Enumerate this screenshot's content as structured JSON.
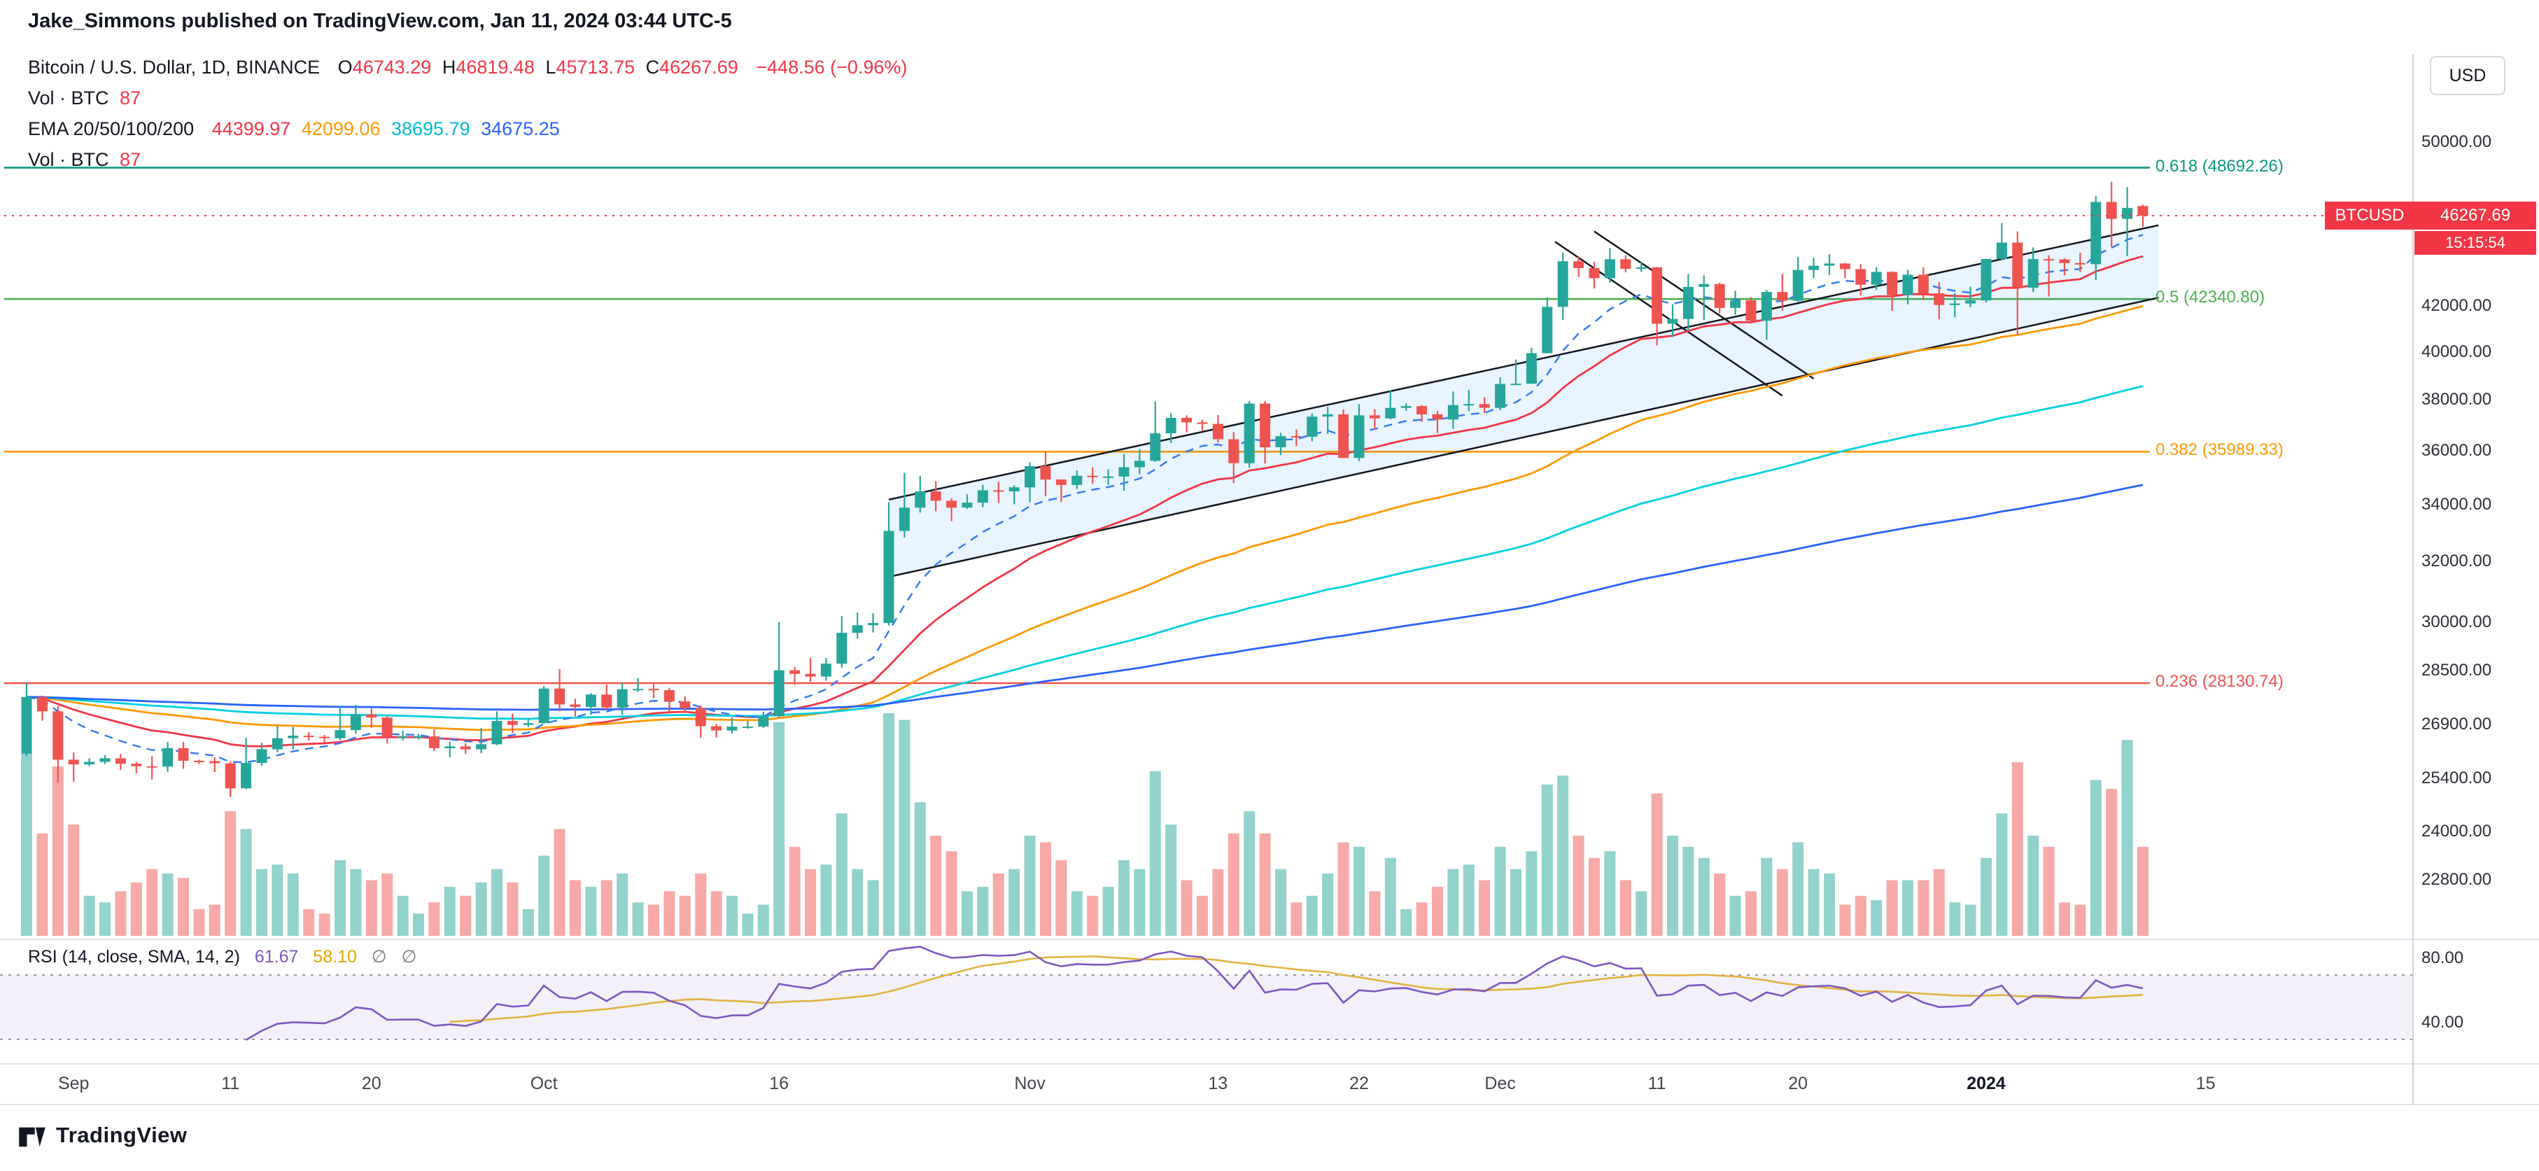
{
  "header": {
    "published_line": "Jake_Simmons published on TradingView.com, Jan 11, 2024 03:44 UTC-5"
  },
  "toolbar": {
    "currency_button": "USD"
  },
  "legend": {
    "symbol_title": "Bitcoin / U.S. Dollar, 1D, BINANCE",
    "ohlc": {
      "o_label": "O",
      "o_value": "46743.29",
      "h_label": "H",
      "h_value": "46819.48",
      "l_label": "L",
      "l_value": "45713.75",
      "c_label": "C",
      "c_value": "46267.69",
      "change": "−448.56 (−0.96%)"
    },
    "vol_row_1": {
      "label": "Vol · BTC",
      "value": "87"
    },
    "ema_row": {
      "label": "EMA 20/50/100/200",
      "value_20": "44399.97",
      "value_50": "42099.06",
      "value_100": "38695.79",
      "value_200": "34675.25"
    },
    "vol_row_2": {
      "label": "Vol · BTC",
      "value": "87"
    }
  },
  "price_scale": {
    "labels": [
      "50000.00",
      "42000.00",
      "40000.00",
      "38000.00",
      "36000.00",
      "34000.00",
      "32000.00",
      "30000.00",
      "28500.00",
      "26900.00",
      "25400.00",
      "24000.00",
      "22800.00"
    ],
    "price_badge": {
      "symbol": "BTCUSD",
      "price": "46267.69",
      "countdown": "15:15:54"
    }
  },
  "rsi_pane": {
    "legend_title": "RSI (14, close, SMA, 14, 2)",
    "rsi_value": "61.67",
    "sma_value": "58.10",
    "empty_1": "∅",
    "empty_2": "∅",
    "axis_labels": [
      "80.00",
      "40.00"
    ]
  },
  "time_axis": {
    "labels": [
      {
        "text": "Sep",
        "day_index": 3
      },
      {
        "text": "11",
        "day_index": 13
      },
      {
        "text": "20",
        "day_index": 22
      },
      {
        "text": "Oct",
        "day_index": 33
      },
      {
        "text": "16",
        "day_index": 48
      },
      {
        "text": "Nov",
        "day_index": 64
      },
      {
        "text": "13",
        "day_index": 76
      },
      {
        "text": "22",
        "day_index": 85
      },
      {
        "text": "Dec",
        "day_index": 94
      },
      {
        "text": "11",
        "day_index": 104
      },
      {
        "text": "20",
        "day_index": 113
      },
      {
        "text": "2024",
        "day_index": 125,
        "emphasis": true
      },
      {
        "text": "15",
        "day_index": 139
      }
    ]
  },
  "footer": {
    "brand": "TradingView"
  },
  "chart_data": {
    "type": "candlestick",
    "title": "Bitcoin / U.S. Dollar, 1D, BINANCE",
    "symbol": "BTCUSD",
    "exchange": "BINANCE",
    "interval": "1D",
    "price_scale_type": "log",
    "date_range": {
      "start": "2023-08-29",
      "end": "2024-01-11"
    },
    "last": {
      "open": 46743.29,
      "high": 46819.48,
      "low": 45713.75,
      "close": 46267.69,
      "change": -448.56,
      "change_pct": -0.96
    },
    "volume_scale": "relative-0-100",
    "colors": {
      "up": "#26a69a",
      "down": "#ef5350",
      "vol_up": "rgba(38,166,154,0.5)",
      "vol_down": "rgba(239,83,80,0.5)",
      "price_line": "#f23645",
      "dashed_ma": "#3179f5",
      "rsi": "#7e57c2",
      "rsi_sma": "#e3b341",
      "channel": "#14161f",
      "channel_fill": "rgba(33,150,243,0.10)",
      "band_fill": "rgba(126,87,194,0.09)",
      "band_line": "#9598a1"
    },
    "candles": [
      [
        26100,
        28140,
        26030,
        27720,
        82
      ],
      [
        27720,
        27760,
        27030,
        27300,
        46
      ],
      [
        27300,
        27460,
        25300,
        25930,
        76
      ],
      [
        25930,
        26130,
        25330,
        25800,
        50
      ],
      [
        25800,
        25970,
        25750,
        25870,
        18
      ],
      [
        25870,
        26060,
        25810,
        25970,
        15
      ],
      [
        25970,
        26090,
        25650,
        25820,
        20
      ],
      [
        25820,
        25870,
        25560,
        25750,
        24
      ],
      [
        25750,
        26030,
        25390,
        25740,
        30
      ],
      [
        25740,
        26420,
        25600,
        26250,
        28
      ],
      [
        26250,
        26420,
        25680,
        25900,
        26
      ],
      [
        25900,
        25930,
        25810,
        25890,
        12
      ],
      [
        25890,
        26000,
        25590,
        25830,
        14
      ],
      [
        25830,
        25880,
        24920,
        25150,
        56
      ],
      [
        25150,
        26550,
        25130,
        25840,
        48
      ],
      [
        25840,
        26400,
        25760,
        26220,
        30
      ],
      [
        26220,
        26880,
        26140,
        26530,
        32
      ],
      [
        26530,
        26850,
        26220,
        26600,
        28
      ],
      [
        26600,
        26700,
        26470,
        26570,
        12
      ],
      [
        26570,
        26620,
        26400,
        26530,
        10
      ],
      [
        26530,
        27430,
        26470,
        26760,
        34
      ],
      [
        26760,
        27490,
        26660,
        27210,
        30
      ],
      [
        27210,
        27390,
        26830,
        27120,
        25
      ],
      [
        27120,
        27160,
        26380,
        26570,
        28
      ],
      [
        26570,
        26750,
        26470,
        26580,
        18
      ],
      [
        26580,
        26650,
        26500,
        26580,
        10
      ],
      [
        26580,
        26780,
        26170,
        26250,
        15
      ],
      [
        26250,
        26430,
        26000,
        26300,
        22
      ],
      [
        26300,
        26390,
        26090,
        26220,
        18
      ],
      [
        26220,
        26820,
        26110,
        26360,
        24
      ],
      [
        26360,
        27300,
        26330,
        27020,
        30
      ],
      [
        27020,
        27230,
        26670,
        26910,
        24
      ],
      [
        26910,
        27100,
        26850,
        26960,
        12
      ],
      [
        26960,
        28050,
        26950,
        27970,
        36
      ],
      [
        27970,
        28560,
        27300,
        27500,
        48
      ],
      [
        27500,
        27670,
        27150,
        27430,
        25
      ],
      [
        27430,
        27830,
        27200,
        27790,
        22
      ],
      [
        27790,
        28090,
        27350,
        27410,
        25
      ],
      [
        27410,
        28120,
        27190,
        27950,
        28
      ],
      [
        27950,
        28280,
        27870,
        27960,
        15
      ],
      [
        27960,
        28100,
        27680,
        27920,
        14
      ],
      [
        27920,
        27990,
        27300,
        27590,
        20
      ],
      [
        27590,
        27730,
        27250,
        27390,
        18
      ],
      [
        27390,
        27470,
        26540,
        26870,
        28
      ],
      [
        26870,
        26940,
        26550,
        26750,
        20
      ],
      [
        26750,
        27120,
        26670,
        26860,
        18
      ],
      [
        26860,
        27020,
        26800,
        26860,
        10
      ],
      [
        26860,
        27290,
        26820,
        27160,
        14
      ],
      [
        27160,
        30020,
        27120,
        28520,
        96
      ],
      [
        28520,
        28620,
        28080,
        28410,
        40
      ],
      [
        28410,
        28890,
        28170,
        28330,
        30
      ],
      [
        28330,
        28900,
        28210,
        28720,
        32
      ],
      [
        28720,
        30210,
        28600,
        29680,
        55
      ],
      [
        29680,
        30330,
        29500,
        29920,
        30
      ],
      [
        29920,
        30300,
        29690,
        29990,
        25
      ],
      [
        29990,
        34100,
        29910,
        33080,
        100
      ],
      [
        33080,
        35190,
        32850,
        33910,
        97
      ],
      [
        33910,
        35080,
        33730,
        34500,
        60
      ],
      [
        34500,
        34880,
        33780,
        34160,
        45
      ],
      [
        34160,
        34250,
        33420,
        33910,
        38
      ],
      [
        33910,
        34400,
        33860,
        34090,
        20
      ],
      [
        34090,
        34740,
        33930,
        34540,
        22
      ],
      [
        34540,
        34850,
        34080,
        34500,
        28
      ],
      [
        34500,
        34720,
        34030,
        34650,
        30
      ],
      [
        34650,
        35590,
        34100,
        35440,
        45
      ],
      [
        35440,
        35990,
        34330,
        34940,
        42
      ],
      [
        34940,
        34950,
        34110,
        34740,
        34
      ],
      [
        34740,
        35280,
        34590,
        35080,
        20
      ],
      [
        35080,
        35400,
        34780,
        35050,
        18
      ],
      [
        35050,
        35310,
        34740,
        35050,
        22
      ],
      [
        35050,
        35900,
        34520,
        35400,
        34
      ],
      [
        35400,
        36090,
        35140,
        35640,
        30
      ],
      [
        35640,
        37970,
        35600,
        36700,
        74
      ],
      [
        36700,
        37500,
        36330,
        37310,
        50
      ],
      [
        37310,
        37410,
        36730,
        37130,
        25
      ],
      [
        37130,
        37230,
        36780,
        37070,
        18
      ],
      [
        37070,
        37420,
        36340,
        36470,
        30
      ],
      [
        36470,
        36750,
        34810,
        35550,
        46
      ],
      [
        35550,
        37980,
        35380,
        37880,
        56
      ],
      [
        37880,
        37980,
        35540,
        36160,
        46
      ],
      [
        36160,
        36720,
        35860,
        36590,
        30
      ],
      [
        36590,
        36850,
        36200,
        36570,
        15
      ],
      [
        36570,
        37490,
        36390,
        37360,
        18
      ],
      [
        37360,
        37750,
        36680,
        37450,
        28
      ],
      [
        37450,
        37650,
        35740,
        35750,
        42
      ],
      [
        35750,
        37860,
        35630,
        37410,
        40
      ],
      [
        37410,
        37650,
        36870,
        37290,
        20
      ],
      [
        37290,
        38410,
        37250,
        37710,
        35
      ],
      [
        37710,
        37890,
        37590,
        37780,
        12
      ],
      [
        37780,
        37820,
        37150,
        37450,
        15
      ],
      [
        37450,
        37580,
        36710,
        37240,
        22
      ],
      [
        37240,
        38370,
        36870,
        37820,
        30
      ],
      [
        37820,
        38440,
        37570,
        37860,
        32
      ],
      [
        37860,
        38140,
        37500,
        37710,
        25
      ],
      [
        37710,
        38950,
        37620,
        38680,
        40
      ],
      [
        38680,
        39700,
        38640,
        38690,
        30
      ],
      [
        38690,
        40200,
        38680,
        39970,
        38
      ],
      [
        39970,
        42420,
        39960,
        41990,
        68
      ],
      [
        41990,
        44480,
        41420,
        44080,
        72
      ],
      [
        44080,
        44300,
        43350,
        43760,
        45
      ],
      [
        43760,
        44050,
        42820,
        43290,
        35
      ],
      [
        43290,
        44700,
        43090,
        44170,
        38
      ],
      [
        44170,
        44360,
        43560,
        43720,
        25
      ],
      [
        43720,
        44050,
        43580,
        43790,
        20
      ],
      [
        43790,
        43810,
        40300,
        41240,
        64
      ],
      [
        41240,
        42110,
        40660,
        41450,
        45
      ],
      [
        41450,
        43480,
        40930,
        42890,
        40
      ],
      [
        42890,
        43420,
        41400,
        43020,
        35
      ],
      [
        43020,
        43080,
        41700,
        41940,
        28
      ],
      [
        41940,
        42710,
        41640,
        42280,
        18
      ],
      [
        42280,
        42420,
        41250,
        41370,
        20
      ],
      [
        41370,
        42760,
        40540,
        42660,
        35
      ],
      [
        42660,
        43490,
        41820,
        42260,
        30
      ],
      [
        42260,
        44280,
        42210,
        43670,
        42
      ],
      [
        43670,
        44240,
        43290,
        43870,
        30
      ],
      [
        43870,
        44400,
        43440,
        43970,
        28
      ],
      [
        43970,
        43990,
        43290,
        43710,
        14
      ],
      [
        43710,
        43940,
        42500,
        42990,
        18
      ],
      [
        42990,
        43800,
        42750,
        43580,
        16
      ],
      [
        43580,
        43600,
        41810,
        42520,
        25
      ],
      [
        42520,
        43680,
        42100,
        43450,
        25
      ],
      [
        43450,
        43790,
        42280,
        42600,
        25
      ],
      [
        42600,
        43110,
        41430,
        42070,
        30
      ],
      [
        42070,
        42610,
        41520,
        42140,
        15
      ],
      [
        42140,
        42900,
        41980,
        42280,
        14
      ],
      [
        42280,
        44190,
        42180,
        44180,
        35
      ],
      [
        44180,
        45900,
        44150,
        44960,
        55
      ],
      [
        44960,
        45500,
        40750,
        42850,
        78
      ],
      [
        42850,
        44730,
        42650,
        44180,
        45
      ],
      [
        44180,
        44360,
        42450,
        44160,
        40
      ],
      [
        44160,
        44210,
        43420,
        43990,
        15
      ],
      [
        43990,
        44480,
        43570,
        43940,
        14
      ],
      [
        43940,
        47240,
        43200,
        46950,
        70
      ],
      [
        46950,
        47970,
        44750,
        46110,
        66
      ],
      [
        46110,
        47700,
        44320,
        46650,
        88
      ],
      [
        46743,
        46819,
        45714,
        46267,
        40
      ]
    ],
    "emas": [
      {
        "period": 20,
        "current": 44399.97,
        "color": "#f23645"
      },
      {
        "period": 50,
        "current": 42099.06,
        "color": "#ff9800"
      },
      {
        "period": 100,
        "current": 38695.79,
        "color": "#00d0e0"
      },
      {
        "period": 200,
        "current": 34675.25,
        "color": "#2962ff"
      }
    ],
    "dashed_ma": {
      "period": 9
    },
    "fib_levels": [
      {
        "ratio": "0.618",
        "price": 48692.26,
        "label": "0.618 (48692.26)",
        "color": "#089981"
      },
      {
        "ratio": "0.5",
        "price": 42340.8,
        "label": "0.5 (42340.80)",
        "color": "#4caf50"
      },
      {
        "ratio": "0.382",
        "price": 35989.33,
        "label": "0.382 (35989.33)",
        "color": "#ff9800"
      },
      {
        "ratio": "0.236",
        "price": 28130.74,
        "label": "0.236 (28130.74)",
        "color": "#ef5350"
      }
    ],
    "channels": [
      {
        "kind": "rising-parallel",
        "fill": true,
        "lower": [
          [
            55,
            31500
          ],
          [
            136,
            42400
          ]
        ],
        "upper": [
          [
            55,
            34200
          ],
          [
            136,
            45800
          ]
        ]
      },
      {
        "kind": "falling-lines",
        "fill": false,
        "lines": [
          [
            [
              97.5,
              45000
            ],
            [
              112,
              38200
            ]
          ],
          [
            [
              100,
              45500
            ],
            [
              114,
              38900
            ]
          ]
        ]
      }
    ],
    "rsi": {
      "period": 14,
      "sma_period": 14,
      "current": 61.67,
      "sma_current": 58.1,
      "upper_band": 70,
      "lower_band": 30,
      "axis_labels": [
        80,
        40
      ]
    }
  }
}
